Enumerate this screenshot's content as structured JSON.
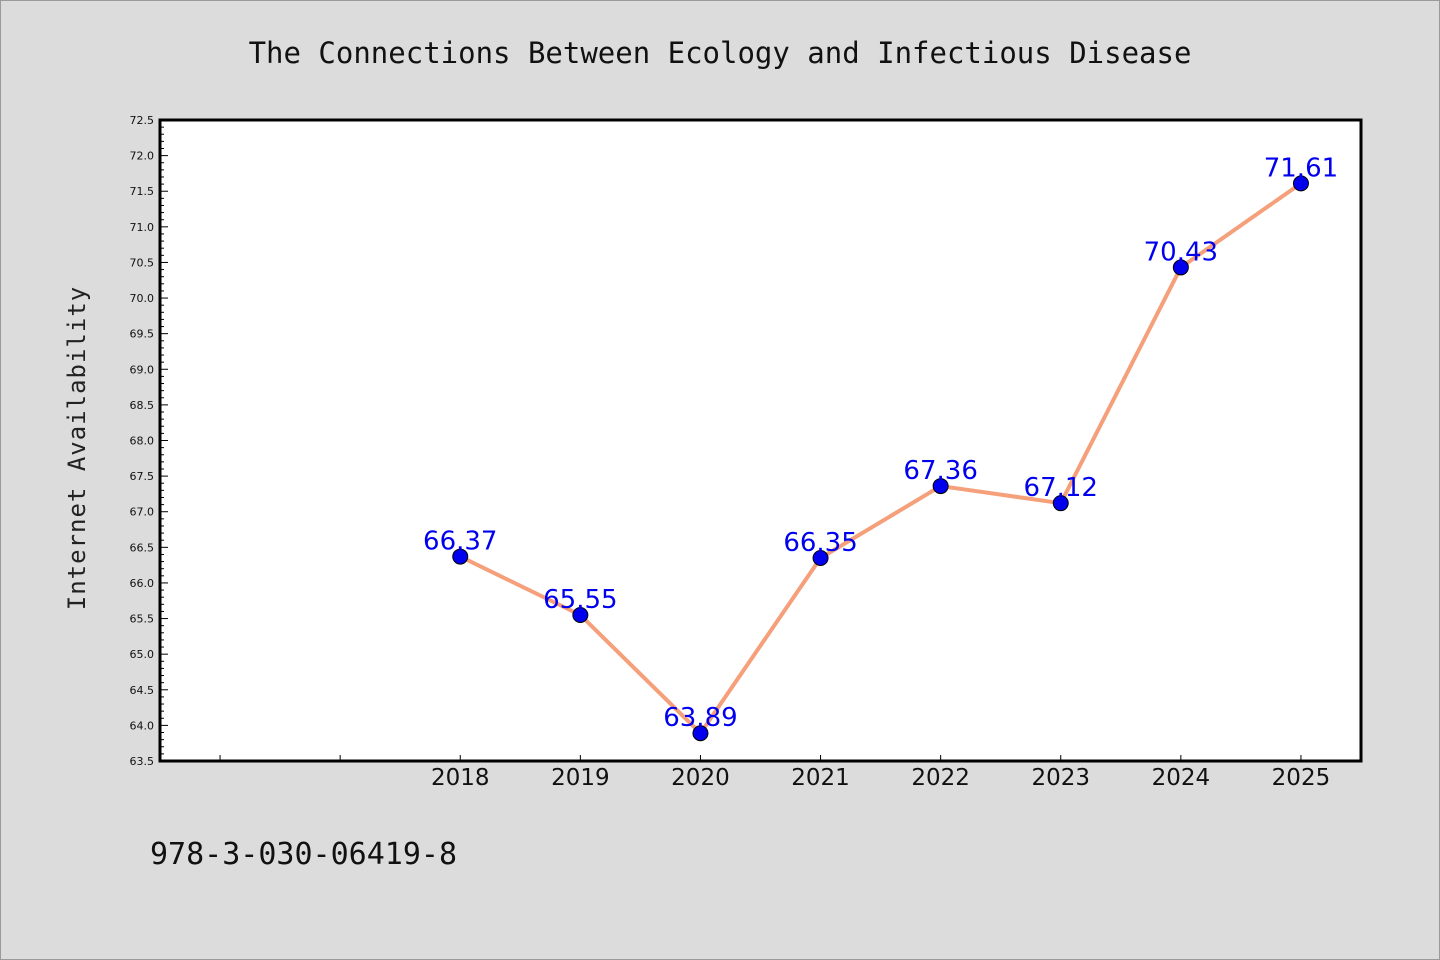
{
  "chart_data": {
    "type": "line",
    "title": "The Connections Between Ecology and Infectious Disease",
    "ylabel": "Internet Availability",
    "xlabel": "",
    "categories": [
      "2018",
      "2019",
      "2020",
      "2021",
      "2022",
      "2023",
      "2024",
      "2025"
    ],
    "values": [
      66.37,
      65.55,
      63.89,
      66.35,
      67.36,
      67.12,
      70.43,
      71.61
    ],
    "data_labels": [
      "66.37",
      "65.55",
      "63.89",
      "66.35",
      "67.36",
      "67.12",
      "70.43",
      "71.61"
    ],
    "ylim": [
      63.5,
      72.5
    ],
    "yticks": [
      "63.5",
      "64.0",
      "64.5",
      "65.0",
      "65.5",
      "66.0",
      "66.5",
      "67.0",
      "67.5",
      "68.0",
      "68.5",
      "69.0",
      "69.5",
      "70.0",
      "70.5",
      "71.0",
      "71.5",
      "72.0",
      "72.5"
    ],
    "x_slots": 10,
    "x_first_category_slot": 2,
    "grid": false,
    "legend": "none",
    "line_color": "#f5a07a",
    "marker_color": "#0000ee",
    "label_color": "#0000ee"
  },
  "footer": {
    "isbn": "978-3-030-06419-8"
  }
}
